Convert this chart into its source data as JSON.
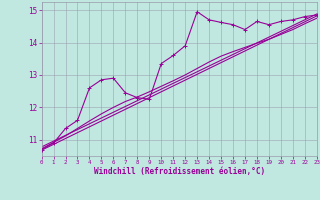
{
  "xlabel": "Windchill (Refroidissement éolien,°C)",
  "bg_color": "#c0e8e0",
  "line_color": "#990099",
  "grid_color": "#9999aa",
  "x_min": 0,
  "x_max": 23,
  "y_min": 10.5,
  "y_max": 15.25,
  "yticks": [
    11,
    12,
    13,
    14,
    15
  ],
  "xticks": [
    0,
    1,
    2,
    3,
    4,
    5,
    6,
    7,
    8,
    9,
    10,
    11,
    12,
    13,
    14,
    15,
    16,
    17,
    18,
    19,
    20,
    21,
    22,
    23
  ],
  "main_x": [
    0,
    1,
    2,
    3,
    4,
    5,
    6,
    7,
    8,
    9,
    10,
    11,
    12,
    13,
    14,
    15,
    16,
    17,
    18,
    19,
    20,
    21,
    22,
    23
  ],
  "main_y": [
    10.7,
    10.9,
    11.35,
    11.6,
    12.6,
    12.85,
    12.9,
    12.45,
    12.3,
    12.25,
    13.35,
    13.6,
    13.9,
    14.95,
    14.7,
    14.62,
    14.55,
    14.4,
    14.65,
    14.55,
    14.65,
    14.7,
    14.8,
    14.85
  ],
  "line2_x": [
    0,
    1,
    2,
    3,
    4,
    5,
    6,
    7,
    8,
    9,
    10,
    11,
    12,
    13,
    14,
    15,
    16,
    17,
    18,
    19,
    20,
    21,
    22,
    23
  ],
  "line2_y": [
    10.72,
    10.92,
    11.12,
    11.35,
    11.58,
    11.8,
    12.0,
    12.18,
    12.32,
    12.48,
    12.65,
    12.82,
    13.0,
    13.2,
    13.4,
    13.58,
    13.72,
    13.85,
    13.98,
    14.1,
    14.25,
    14.4,
    14.58,
    14.75
  ],
  "line3_x": [
    0,
    23
  ],
  "line3_y": [
    10.78,
    14.88
  ],
  "line4_x": [
    0,
    23
  ],
  "line4_y": [
    10.68,
    14.82
  ]
}
